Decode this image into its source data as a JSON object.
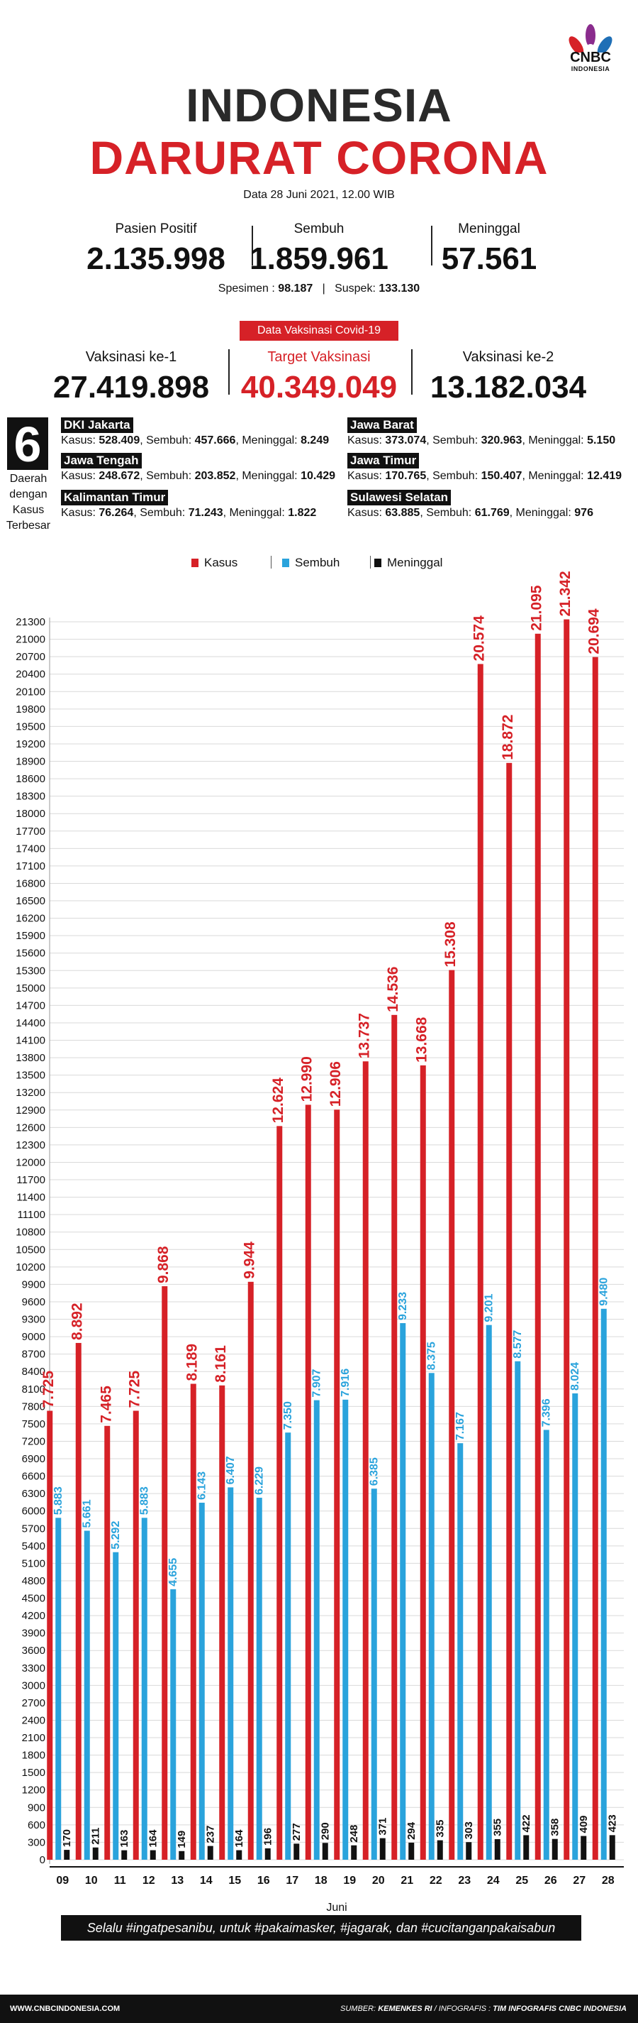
{
  "logo": {
    "name": "CNBC",
    "sub": "INDONESIA"
  },
  "title": {
    "line1": "INDONESIA",
    "line2": "DARURAT CORONA"
  },
  "date": "Data 28 Juni 2021, 12.00 WIB",
  "stats": [
    {
      "label": "Pasien Positif",
      "value": "2.135.998"
    },
    {
      "label": "Sembuh",
      "value": "1.859.961"
    },
    {
      "label": "Meninggal",
      "value": "57.561"
    }
  ],
  "spesimen": {
    "label": "Spesimen :",
    "value": "98.187",
    "suspek_label": "Suspek:",
    "suspek_value": "133.130"
  },
  "vaksin": {
    "badge": "Data Vaksinasi Covid-19",
    "items": [
      {
        "label": "Vaksinasi ke-1",
        "value": "27.419.898"
      },
      {
        "label": "Target Vaksinasi",
        "value": "40.349.049"
      },
      {
        "label": "Vaksinasi ke-2",
        "value": "13.182.034"
      }
    ]
  },
  "regions": {
    "count": "6",
    "caption": [
      "Daerah",
      "dengan",
      "Kasus",
      "Terbesar"
    ],
    "items": [
      {
        "name": "DKI Jakarta",
        "kasus": "528.409",
        "sembuh": "457.666",
        "meninggal": "8.249"
      },
      {
        "name": "Jawa Barat",
        "kasus": "373.074",
        "sembuh": "320.963",
        "meninggal": "5.150"
      },
      {
        "name": "Jawa Tengah",
        "kasus": "248.672",
        "sembuh": "203.852",
        "meninggal": "10.429"
      },
      {
        "name": "Jawa Timur",
        "kasus": "170.765",
        "sembuh": "150.407",
        "meninggal": "12.419"
      },
      {
        "name": "Kalimantan Timur",
        "kasus": "76.264",
        "sembuh": "71.243",
        "meninggal": "1.822"
      },
      {
        "name": "Sulawesi Selatan",
        "kasus": "63.885",
        "sembuh": "61.769",
        "meninggal": "976"
      }
    ],
    "labels": {
      "kasus": "Kasus:",
      "sembuh": "Sembuh:",
      "meninggal": "Meninggal:"
    }
  },
  "colors": {
    "kasus": "#d62127",
    "sembuh": "#2aa3dc",
    "meninggal": "#111111",
    "accent": "#d62127"
  },
  "chart_data": {
    "type": "bar",
    "xlabel": "Juni",
    "ylim": [
      0,
      21300
    ],
    "ytick_step": 300,
    "grid": true,
    "legend_position": "top",
    "categories": [
      "09",
      "10",
      "11",
      "12",
      "13",
      "14",
      "15",
      "16",
      "17",
      "18",
      "19",
      "20",
      "21",
      "22",
      "23",
      "24",
      "25",
      "26",
      "27",
      "28"
    ],
    "series": [
      {
        "name": "Kasus",
        "color": "#d62127",
        "values": [
          7725,
          8892,
          7465,
          7725,
          9868,
          8189,
          8161,
          9944,
          12624,
          12990,
          12906,
          13737,
          14536,
          13668,
          15308,
          20574,
          18872,
          21095,
          21342,
          20694
        ],
        "labels": [
          "7.725",
          "8.892",
          "7.465",
          "7.725",
          "9.868",
          "8.189",
          "8.161",
          "9.944",
          "12.624",
          "12.990",
          "12.906",
          "13.737",
          "14.536",
          "13.668",
          "15.308",
          "20.574",
          "18.872",
          "21.095",
          "21.342",
          "20.694"
        ]
      },
      {
        "name": "Sembuh",
        "color": "#2aa3dc",
        "values": [
          5883,
          5661,
          5292,
          5883,
          4655,
          6143,
          6407,
          6229,
          7350,
          7907,
          7916,
          6385,
          9233,
          8375,
          7167,
          9201,
          8577,
          7396,
          8024,
          9480
        ],
        "labels": [
          "5.883",
          "5.661",
          "5.292",
          "5.883",
          "4.655",
          "6.143",
          "6.407",
          "6.229",
          "7.350",
          "7.907",
          "7.916",
          "6.385",
          "9.233",
          "8.375",
          "7.167",
          "9.201",
          "8.577",
          "7.396",
          "8.024",
          "9.480"
        ]
      },
      {
        "name": "Meninggal",
        "color": "#111111",
        "values": [
          170,
          211,
          163,
          164,
          149,
          237,
          164,
          196,
          277,
          290,
          248,
          371,
          294,
          335,
          303,
          355,
          422,
          358,
          409,
          423
        ],
        "labels": [
          "170",
          "211",
          "163",
          "164",
          "149",
          "237",
          "164",
          "196",
          "277",
          "290",
          "248",
          "371",
          "294",
          "335",
          "303",
          "355",
          "422",
          "358",
          "409",
          "423"
        ]
      }
    ]
  },
  "slogan": "Selalu #ingatpesanibu, untuk #pakaimasker, #jagarak, dan #cucitanganpakaisabun",
  "footer": {
    "left": "WWW.CNBCINDONESIA.COM",
    "source_label": "SUMBER:",
    "source": "KEMENKES RI",
    "credit": "TIM INFOGRAFIS CNBC INDONESIA"
  }
}
